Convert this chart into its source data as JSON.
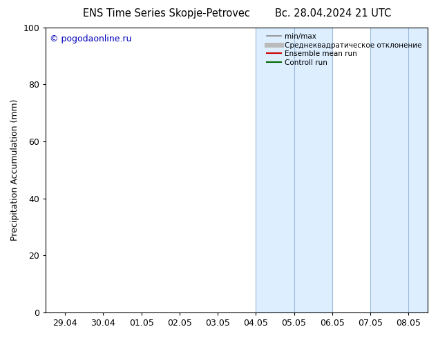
{
  "title_left": "ENS Time Series Skopje-Petrovec",
  "title_right": "Вс. 28.04.2024 21 UTC",
  "ylabel": "Precipitation Accumulation (mm)",
  "watermark": "© pogodaonline.ru",
  "ylim": [
    0,
    100
  ],
  "yticks": [
    0,
    20,
    40,
    60,
    80,
    100
  ],
  "xtick_labels": [
    "29.04",
    "30.04",
    "01.05",
    "02.05",
    "03.05",
    "04.05",
    "05.05",
    "06.05",
    "07.05",
    "08.05"
  ],
  "band_color": "#ddeeff",
  "band_edge_color": "#99bbdd",
  "legend_items": [
    {
      "label": "min/max",
      "color": "#888888",
      "lw": 1.2
    },
    {
      "label": "Среднеквадратическое отклонение",
      "color": "#bbbbbb",
      "lw": 5
    },
    {
      "label": "Ensemble mean run",
      "color": "#cc0000",
      "lw": 1.5
    },
    {
      "label": "Controll run",
      "color": "#006600",
      "lw": 1.5
    }
  ],
  "background_color": "#ffffff",
  "title_fontsize": 10.5,
  "tick_fontsize": 9,
  "ylabel_fontsize": 9,
  "watermark_color": "#0000bb",
  "watermark_fontsize": 9,
  "fig_width": 6.34,
  "fig_height": 4.9,
  "dpi": 100
}
